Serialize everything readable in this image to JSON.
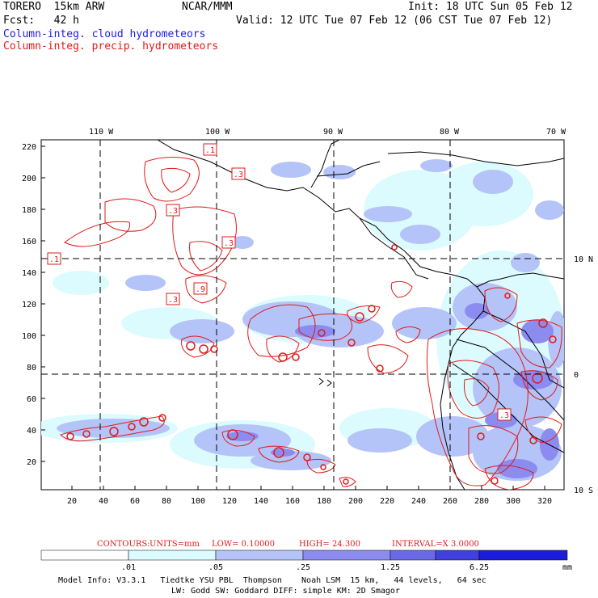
{
  "header": {
    "model": "TORERO  15km ARW",
    "center": "NCAR/MMM",
    "init": "Init: 18 UTC Sun 05 Feb 12",
    "fcst": "Fcst:   42 h",
    "valid": "Valid: 12 UTC Tue 07 Feb 12 (06 CST Tue 07 Feb 12)",
    "cloud_label": "Column-integ. cloud hydrometeors",
    "precip_label": "Column-integ. precip. hydrometeors",
    "cloud_color": "#1d1ddb",
    "precip_color": "#e01a1a"
  },
  "axes": {
    "lon_labels": [
      "110 W",
      "100 W",
      "90 W",
      "80 W",
      "70 W"
    ],
    "lat_labels": [
      "10 N",
      "0",
      "10 S"
    ],
    "y_ticks": [
      "220",
      "200",
      "180",
      "160",
      "140",
      "120",
      "100",
      "80",
      "60",
      "40",
      "20"
    ],
    "x_ticks": [
      "20",
      "40",
      "60",
      "80",
      "100",
      "120",
      "140",
      "160",
      "180",
      "200",
      "220",
      "240",
      "260",
      "280",
      "300",
      "320"
    ]
  },
  "contour_boxes": [
    ".1",
    ".3",
    ".3",
    ".3",
    ".1",
    ".9",
    ".3",
    ".3"
  ],
  "contours": {
    "caption_prefix": "CONTOURS:",
    "units": "UNITS=mm",
    "low": "LOW= 0.10000",
    "high": "HIGH=  24.300",
    "interval": "INTERVAL=X  3.0000"
  },
  "colorbar": {
    "ticks": [
      ".01",
      ".05",
      ".25",
      "1.25",
      "6.25"
    ],
    "unit": "mm",
    "colors": [
      "#ffffff",
      "#dcfbff",
      "#b4c4f8",
      "#8c8cf0",
      "#6a6ae8",
      "#4040e0",
      "#1c1cdc"
    ]
  },
  "footer": {
    "line1": "Model Info: V3.3.1   Tiedtke YSU PBL  Thompson    Noah LSM  15 km,   44 levels,   64 sec",
    "line2": "LW: Godd SW: Goddard DIFF: simple KM: 2D Smagor"
  }
}
